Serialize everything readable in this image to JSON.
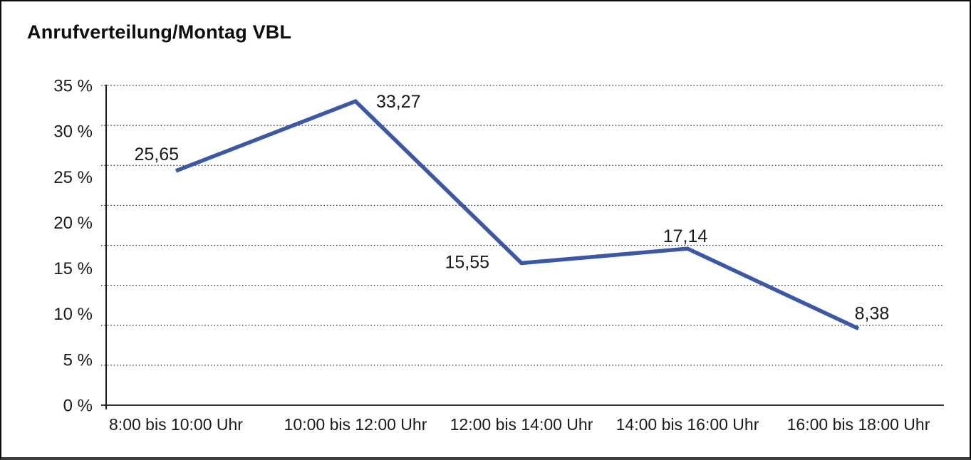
{
  "frame": {
    "background": "#ffffff",
    "border_color": "#0c0c0c",
    "border_bottom_color": "#3d3d3d"
  },
  "chart_data": {
    "type": "line",
    "title": "Anrufverteilung/Montag VBL",
    "categories": [
      "8:00 bis 10:00 Uhr",
      "10:00 bis 12:00 Uhr",
      "12:00 bis 14:00 Uhr",
      "14:00 bis 16:00 Uhr",
      "16:00 bis 18:00 Uhr"
    ],
    "series": [
      {
        "values": [
          25.65,
          33.27,
          15.55,
          17.14,
          8.38
        ],
        "data_labels": [
          "25,65",
          "33,27",
          "15,55",
          "17,14",
          "8,38"
        ],
        "color": "#3A58A7"
      }
    ],
    "y_axis": {
      "min": 0,
      "max": 35,
      "step": 5,
      "unit": "%",
      "tick_labels": [
        "35 %",
        "30 %",
        "25 %",
        "20 %",
        "15 %",
        "10 %",
        "5 %",
        "0 %"
      ]
    },
    "x_axis": {
      "tick_labels": [
        "8:00 bis 10:00 Uhr",
        "10:00 bis 12:00 Uhr",
        "12:00 bis 14:00 Uhr",
        "14:00 bis 16:00 Uhr",
        "16:00 bis 18:00 Uhr"
      ]
    },
    "grid": {
      "style": "horizontal-dotted",
      "color": "#333333"
    },
    "axis_color": "#1a1a1a",
    "text_color": "#1a1a1a",
    "legend": "none"
  }
}
